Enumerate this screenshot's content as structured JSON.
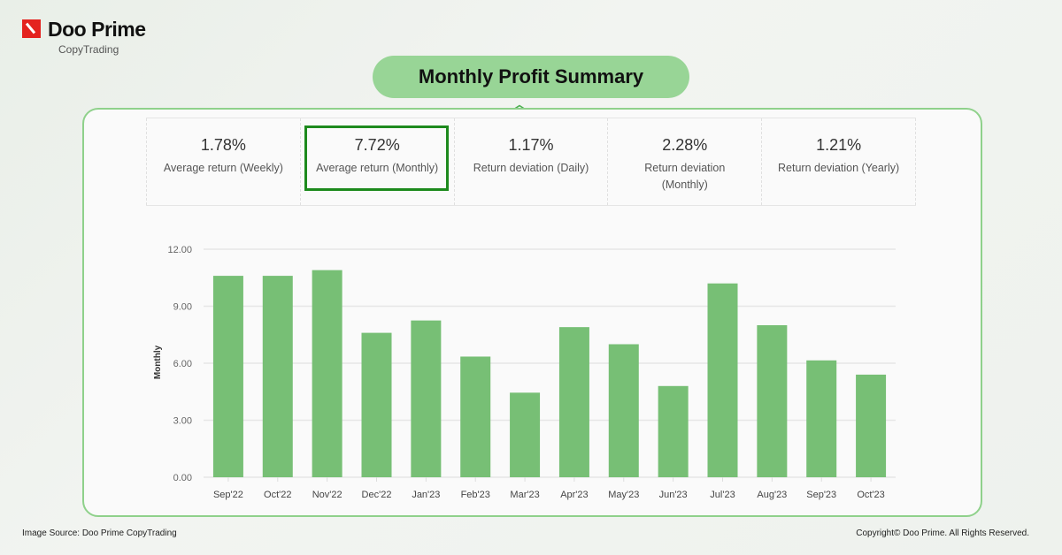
{
  "brand": {
    "name": "Doo Prime",
    "sub": "CopyTrading"
  },
  "title": "Monthly Profit Summary",
  "stats": [
    {
      "value": "1.78%",
      "label": "Average return (Weekly)"
    },
    {
      "value": "7.72%",
      "label": "Average return (Monthly)",
      "highlighted": true
    },
    {
      "value": "1.17%",
      "label": "Return deviation (Daily)"
    },
    {
      "value": "2.28%",
      "label": "Return deviation (Monthly)"
    },
    {
      "value": "1.21%",
      "label": "Return deviation (Yearly)"
    }
  ],
  "chart_data": {
    "type": "bar",
    "ylabel": "Monthly",
    "ylim": [
      0,
      12
    ],
    "yticks": [
      "0.00",
      "3.00",
      "6.00",
      "9.00",
      "12.00"
    ],
    "grid": true,
    "color": "#77bf75",
    "categories": [
      "Sep'22",
      "Oct'22",
      "Nov'22",
      "Dec'22",
      "Jan'23",
      "Feb'23",
      "Mar'23",
      "Apr'23",
      "May'23",
      "Jun'23",
      "Jul'23",
      "Aug'23",
      "Sep'23",
      "Oct'23"
    ],
    "values": [
      10.6,
      10.6,
      10.9,
      7.6,
      8.25,
      6.35,
      4.45,
      7.9,
      7.0,
      4.8,
      10.2,
      8.0,
      6.15,
      5.4
    ]
  },
  "footer": {
    "source": "Image Source: Doo Prime CopyTrading",
    "copyright": "Copyright© Doo Prime. All Rights Reserved."
  }
}
